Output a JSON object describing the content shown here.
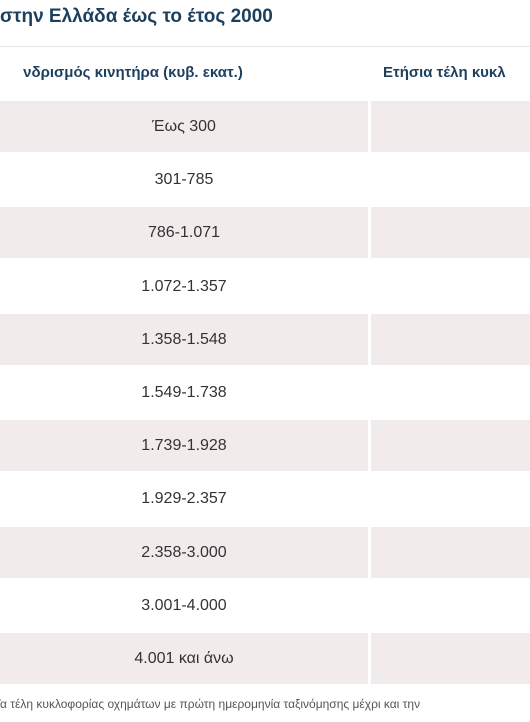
{
  "header": {
    "title": "στην Ελλάδα έως το έτος 2000"
  },
  "table": {
    "columns": [
      "νδρισμός κινητήρα (κυβ. εκατ.)",
      "Ετήσια τέλη κυκλ"
    ],
    "rows": [
      "Έως 300",
      "301-785",
      "786-1.071",
      "1.072-1.357",
      "1.358-1.548",
      "1.549-1.738",
      "1.739-1.928",
      "1.929-2.357",
      "2.358-3.000",
      "3.001-4.000",
      "4.001 και άνω"
    ]
  },
  "footer": {
    "note": "Τα τέλη κυκλοφορίας οχημάτων με πρώτη ημερομηνία ταξινόμησης μέχρι και την"
  }
}
